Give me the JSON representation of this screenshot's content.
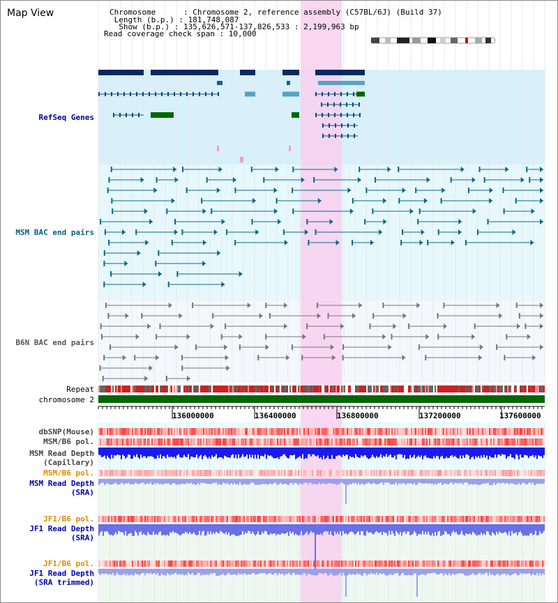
{
  "view_title": "Map View",
  "header": {
    "chromosome": "Chromosome      : Chromosome 2, reference assembly (C57BL/6J) (Build 37)",
    "length": " Length (b.p.) : 181,748,087",
    "show": "  Show (b.p.) : 135,626,571-137,826,533 : 2,199,963 bp",
    "coverage": "Read coverage check span : 10,000"
  },
  "tracks": {
    "refseq": "RefSeq Genes",
    "msm_bac": "MSM BAC end pairs",
    "b6n_bac": "B6N BAC end pairs",
    "repeat": "Repeat",
    "chromosome": "chromosome 2",
    "dbsnp": "dbSNP(Mouse)",
    "msm_b6_pol": "MSM/B6 pol.",
    "msm_depth_cap": "MSM Read Depth",
    "msm_depth_cap_sub": "(Capillary)",
    "msm_b6_pol2": "MSM/B6 pol.",
    "msm_depth_sra": "MSM Read Depth",
    "msm_depth_sra_sub": "(SRA)",
    "jf1_b6_pol": "JF1/B6 pol.",
    "jf1_depth_sra": "JF1 Read Depth",
    "jf1_depth_sra_sub": "(SRA)",
    "jf1_b6_pol2": "JF1/B6 pol.",
    "jf1_depth_trim": "JF1 Read Depth",
    "jf1_depth_trim_sub": "(SRA trimmed)"
  },
  "axis_ticks": [
    "136000000",
    "136400000",
    "136800000",
    "137200000",
    "137600000"
  ],
  "colors": {
    "refseq_label": "#000099",
    "msm_label": "#006080",
    "b6n_label": "#555555",
    "orange_label": "#e08a00",
    "blue_label": "#0000aa",
    "highlight": "#f8d0ee",
    "chromosome_bar": "#006600"
  }
}
